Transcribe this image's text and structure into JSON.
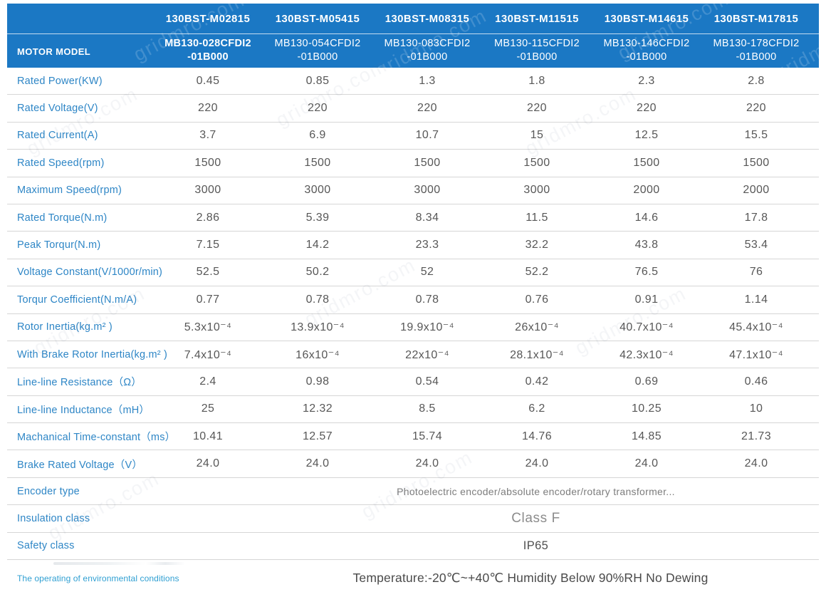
{
  "watermark": {
    "text": "gridmro.com"
  },
  "header": {
    "label": "MOTOR MODEL",
    "columns": [
      {
        "series": "130BST-M02815",
        "code_line1": "MB130-028CFDI2",
        "code_line2": "-01B000"
      },
      {
        "series": "130BST-M05415",
        "code_line1": "MB130-054CFDI2",
        "code_line2": "-01B000"
      },
      {
        "series": "130BST-M08315",
        "code_line1": "MB130-083CFDI2",
        "code_line2": "-01B000"
      },
      {
        "series": "130BST-M11515",
        "code_line1": "MB130-115CFDI2",
        "code_line2": "-01B000"
      },
      {
        "series": "130BST-M14615",
        "code_line1": "MB130-146CFDI2",
        "code_line2": "-01B000"
      },
      {
        "series": "130BST-M17815",
        "code_line1": "MB130-178CFDI2",
        "code_line2": "-01B000"
      }
    ]
  },
  "table": {
    "rows": [
      {
        "label": "Rated Power(KW)",
        "values": [
          "0.45",
          "0.85",
          "1.3",
          "1.8",
          "2.3",
          "2.8"
        ]
      },
      {
        "label": "Rated Voltage(V)",
        "values": [
          "220",
          "220",
          "220",
          "220",
          "220",
          "220"
        ]
      },
      {
        "label": "Rated Current(A)",
        "values": [
          "3.7",
          "6.9",
          "10.7",
          "15",
          "12.5",
          "15.5"
        ]
      },
      {
        "label": "Rated Speed(rpm)",
        "values": [
          "1500",
          "1500",
          "1500",
          "1500",
          "1500",
          "1500"
        ]
      },
      {
        "label": "Maximum Speed(rpm)",
        "values": [
          "3000",
          "3000",
          "3000",
          "3000",
          "2000",
          "2000"
        ]
      },
      {
        "label": "Rated Torque(N.m)",
        "values": [
          "2.86",
          "5.39",
          "8.34",
          "11.5",
          "14.6",
          "17.8"
        ]
      },
      {
        "label": "Peak Torqur(N.m)",
        "values": [
          "7.15",
          "14.2",
          "23.3",
          "32.2",
          "43.8",
          "53.4"
        ]
      },
      {
        "label": "Voltage Constant(V/1000r/min)",
        "values": [
          "52.5",
          "50.2",
          "52",
          "52.2",
          "76.5",
          "76"
        ]
      },
      {
        "label": "Torqur Coefficient(N.m/A)",
        "values": [
          "0.77",
          "0.78",
          "0.78",
          "0.76",
          "0.91",
          "1.14"
        ]
      },
      {
        "label": "Rotor Inertia(kg.m² )",
        "values": [
          "5.3x10⁻⁴",
          "13.9x10⁻⁴",
          "19.9x10⁻⁴",
          "26x10⁻⁴",
          "40.7x10⁻⁴",
          "45.4x10⁻⁴"
        ]
      },
      {
        "label": "With Brake Rotor Inertia(kg.m² )",
        "values": [
          "7.4x10⁻⁴",
          "16x10⁻⁴",
          "22x10⁻⁴",
          "28.1x10⁻⁴",
          "42.3x10⁻⁴",
          "47.1x10⁻⁴"
        ]
      },
      {
        "label": "Line-line Resistance（Ω）",
        "values": [
          "2.4",
          "0.98",
          "0.54",
          "0.42",
          "0.69",
          "0.46"
        ]
      },
      {
        "label": "Line-line Inductance（mH）",
        "values": [
          "25",
          "12.32",
          "8.5",
          "6.2",
          "10.25",
          "10"
        ]
      },
      {
        "label": "Machanical Time-constant（ms）",
        "values": [
          "10.41",
          "12.57",
          "15.74",
          "14.76",
          "14.85",
          "21.73"
        ]
      },
      {
        "label": "Brake Rated Voltage（V）",
        "values": [
          "24.0",
          "24.0",
          "24.0",
          "24.0",
          "24.0",
          "24.0"
        ]
      }
    ],
    "merged_rows": [
      {
        "label": "Encoder type",
        "value": "Photoelectric encoder/absolute encoder/rotary transformer..."
      },
      {
        "label": "Insulation class",
        "value": "Class F"
      },
      {
        "label": "Safety class",
        "value": "IP65"
      }
    ],
    "footer_row": {
      "label": "The operating of environmental conditions",
      "value": "Temperature:-20℃~+40℃  Humidity Below 90%RH No Dewing"
    }
  },
  "colors": {
    "header_background": "#1b78c4",
    "header_text": "#ffffff",
    "label_text": "#2e86c6",
    "value_text": "#575757",
    "separator": "#d6d6d6"
  }
}
